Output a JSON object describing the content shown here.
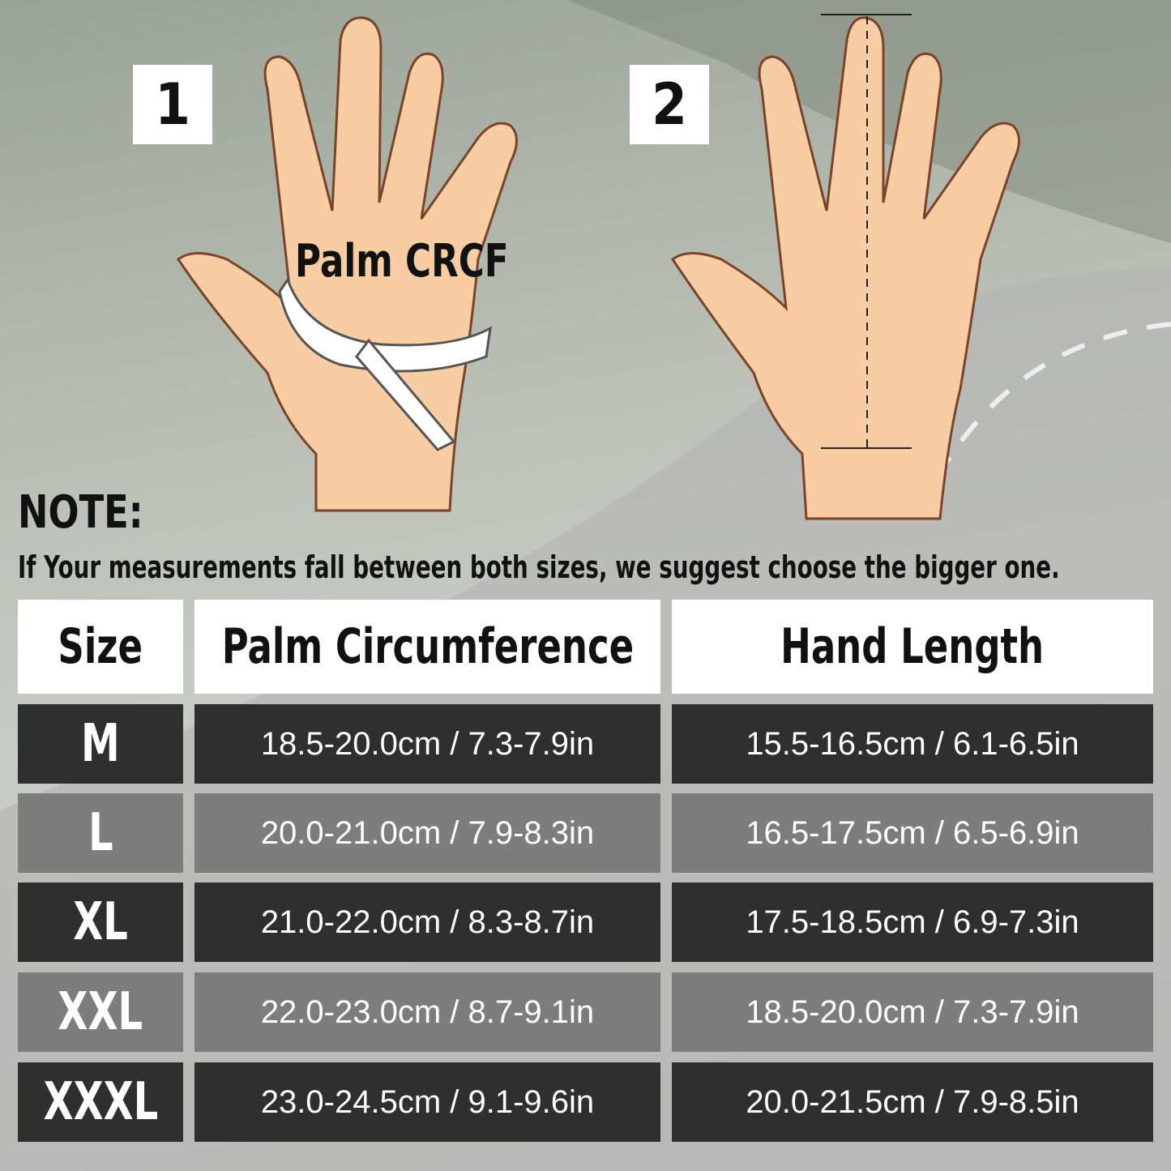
{
  "steps": [
    "1",
    "2"
  ],
  "palm_label": "Palm CRCF",
  "note": {
    "title": "NOTE:",
    "text": "If Your measurements fall between both sizes, we suggest choose the bigger one."
  },
  "table": {
    "headers": [
      "Size",
      "Palm Circumference",
      "Hand Length"
    ],
    "rows": [
      {
        "size": "M",
        "palm": "18.5-20.0cm / 7.3-7.9in",
        "length": "15.5-16.5cm / 6.1-6.5in"
      },
      {
        "size": "L",
        "palm": "20.0-21.0cm / 7.9-8.3in",
        "length": "16.5-17.5cm / 6.5-6.9in"
      },
      {
        "size": "XL",
        "palm": "21.0-22.0cm / 8.3-8.7in",
        "length": "17.5-18.5cm / 6.9-7.3in"
      },
      {
        "size": "XXL",
        "palm": "22.0-23.0cm / 8.7-9.1in",
        "length": "18.5-20.0cm / 7.3-7.9in"
      },
      {
        "size": "XXXL",
        "palm": "23.0-24.5cm / 9.1-9.6in",
        "length": "20.0-21.5cm / 7.9-8.5in"
      }
    ]
  },
  "colors": {
    "skin": "#f9cda4",
    "outline": "#7a4428",
    "row_dark": "#2f2f2f",
    "row_mid": "#7d7d7d"
  }
}
